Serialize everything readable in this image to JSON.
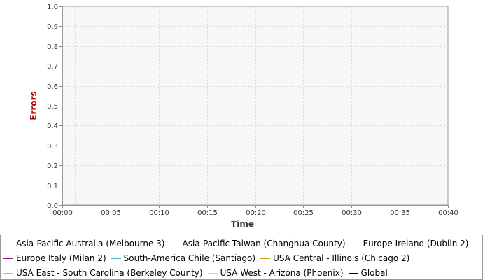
{
  "chart_data": {
    "type": "line",
    "xlabel": "Time",
    "ylabel": "Errors",
    "ylim": [
      0.0,
      1.0
    ],
    "y_ticks": [
      "0.0",
      "0.1",
      "0.2",
      "0.3",
      "0.4",
      "0.5",
      "0.6",
      "0.7",
      "0.8",
      "0.9",
      "1.0"
    ],
    "x_ticks": [
      "00:00",
      "00:05",
      "00:10",
      "00:15",
      "00:20",
      "00:25",
      "00:30",
      "00:35",
      "00:40"
    ],
    "grid": true,
    "legend_placement": "bottom",
    "series": [
      {
        "name": "Asia-Pacific Australia (Melbourne 3)",
        "color": "#1f5fbf",
        "values": []
      },
      {
        "name": "Asia-Pacific Taiwan (Changhua County)",
        "color": "#3aaa35",
        "values": []
      },
      {
        "name": "Europe Ireland (Dublin 2)",
        "color": "#b22222",
        "values": []
      },
      {
        "name": "Europe Italy (Milan 2)",
        "color": "#8b1a8b",
        "values": []
      },
      {
        "name": "South-America Chile (Santiago)",
        "color": "#3fb7c9",
        "values": []
      },
      {
        "name": "USA Central - Illinois (Chicago 2)",
        "color": "#d4a017",
        "values": []
      },
      {
        "name": "USA East - South Carolina (Berkeley County)",
        "color": "#e8a0a0",
        "values": []
      },
      {
        "name": "USA West - Arizona (Phoenix)",
        "color": "#e6e600",
        "values": []
      },
      {
        "name": "Global",
        "color": "#000000",
        "values": []
      }
    ]
  },
  "colors": {
    "plot_background": "#f7f7f7",
    "grid": "#dddddd",
    "ylabel_color": "#b20000",
    "xlabel_color": "#333333"
  }
}
